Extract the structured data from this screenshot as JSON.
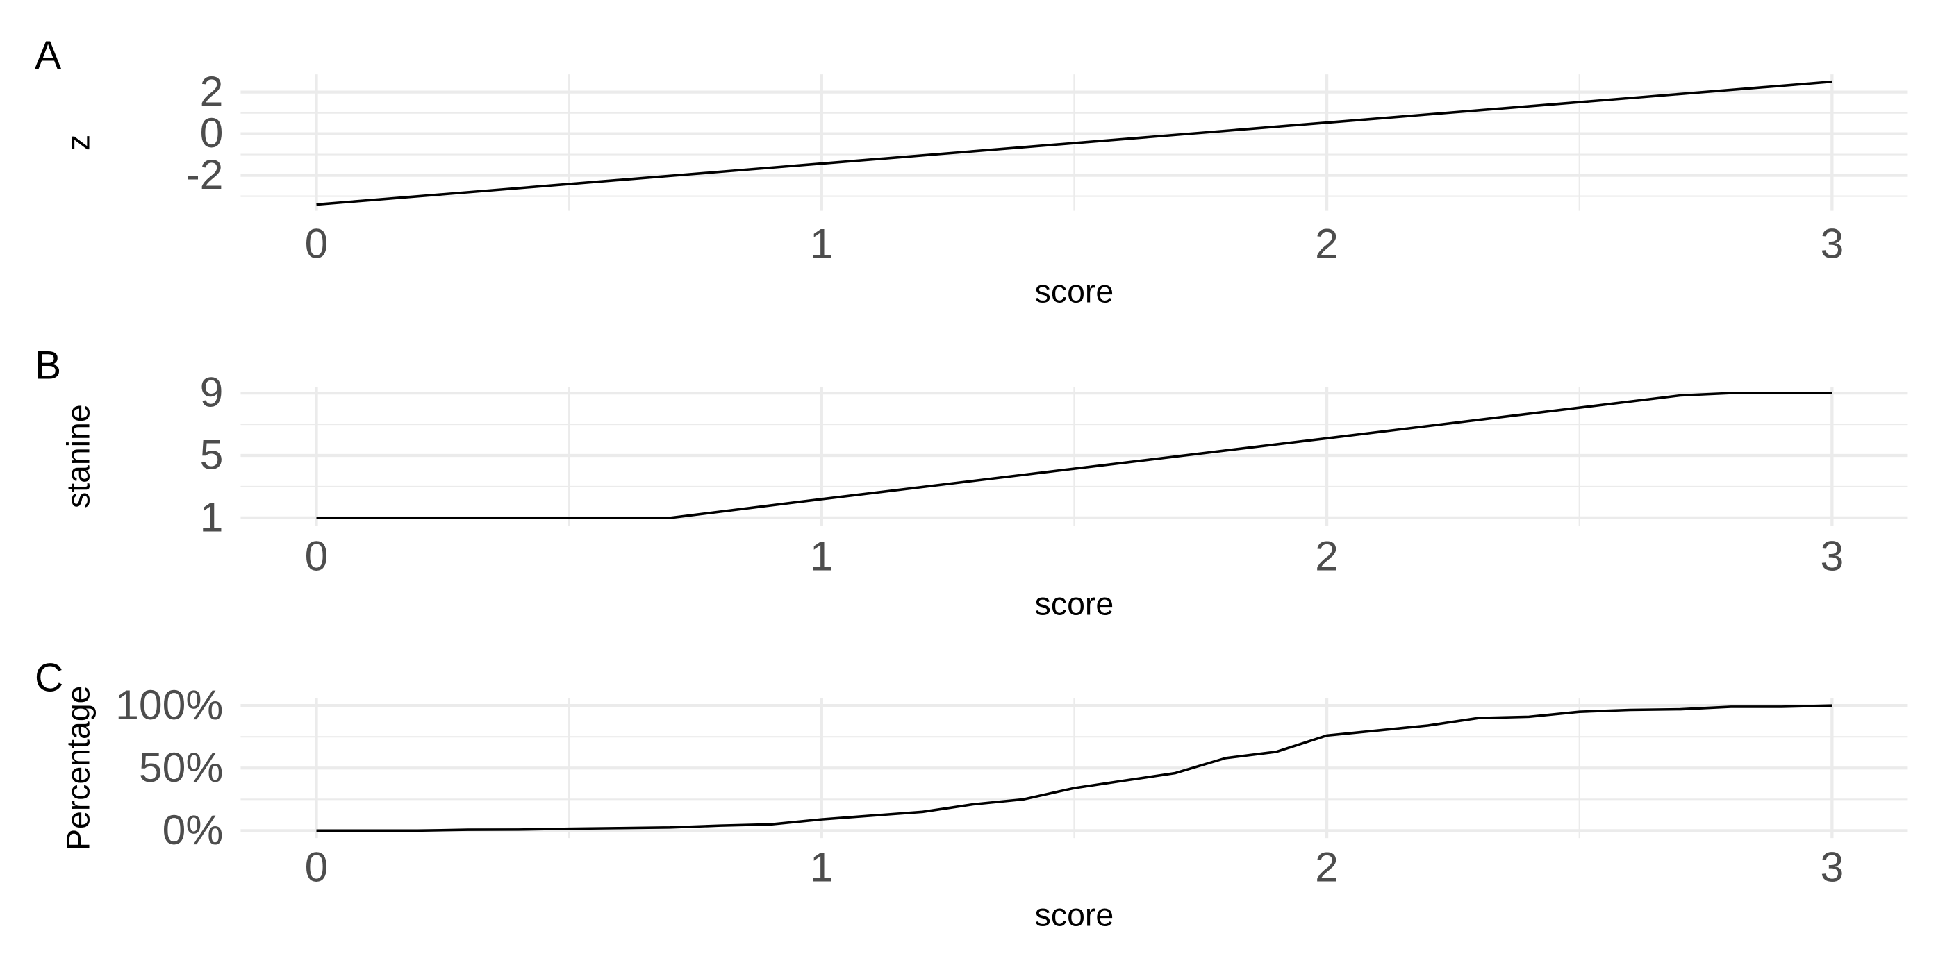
{
  "chart_data": [
    {
      "type": "line",
      "label": "A",
      "xlabel": "score",
      "ylabel": "z",
      "x": [
        0,
        3
      ],
      "values": [
        -3.4,
        2.5
      ],
      "color": "#000000",
      "xlim": [
        -0.15,
        3.15
      ],
      "xticks": [
        0,
        1,
        2,
        3
      ],
      "xminor": [
        0.5,
        1.5,
        2.5
      ],
      "ylim": [
        -3.7,
        2.85
      ],
      "yticks": [
        -2,
        0,
        2
      ],
      "yminor": [
        -3,
        -1,
        1
      ],
      "grid": true
    },
    {
      "type": "line",
      "label": "B",
      "xlabel": "score",
      "ylabel": "stanine",
      "x": [
        0,
        0.7,
        1,
        2,
        2.7,
        2.8,
        3
      ],
      "values": [
        1,
        1,
        2.2,
        6.1,
        8.85,
        9,
        9
      ],
      "color": "#000000",
      "xlim": [
        -0.15,
        3.15
      ],
      "xticks": [
        0,
        1,
        2,
        3
      ],
      "xminor": [
        0.5,
        1.5,
        2.5
      ],
      "ylim": [
        0.5,
        9.4
      ],
      "yticks": [
        1,
        5,
        9
      ],
      "yminor": [
        3,
        7
      ],
      "grid": true
    },
    {
      "type": "line",
      "label": "C",
      "xlabel": "score",
      "ylabel": "Percentage",
      "x": [
        0,
        0.1,
        0.2,
        0.3,
        0.4,
        0.5,
        0.6,
        0.7,
        0.8,
        0.9,
        1.0,
        1.1,
        1.2,
        1.3,
        1.4,
        1.5,
        1.6,
        1.7,
        1.8,
        1.9,
        2.0,
        2.1,
        2.2,
        2.3,
        2.4,
        2.5,
        2.6,
        2.7,
        2.8,
        2.9,
        3.0
      ],
      "values": [
        0,
        0,
        0,
        0.7,
        0.8,
        1.5,
        2,
        2.5,
        4,
        5,
        9,
        12,
        15,
        21,
        25,
        34,
        40,
        46,
        58,
        63,
        76,
        80,
        84,
        90,
        91,
        95,
        96.5,
        97,
        99,
        99,
        100
      ],
      "color": "#000000",
      "xlim": [
        -0.15,
        3.15
      ],
      "xticks": [
        0,
        1,
        2,
        3
      ],
      "xminor": [
        0.5,
        1.5,
        2.5
      ],
      "ylim": [
        -6,
        106
      ],
      "yticks": [
        {
          "value": 0,
          "label": "0%"
        },
        {
          "value": 50,
          "label": "50%"
        },
        {
          "value": 100,
          "label": "100%"
        }
      ],
      "yminor": [
        25,
        75
      ],
      "grid": true
    }
  ]
}
